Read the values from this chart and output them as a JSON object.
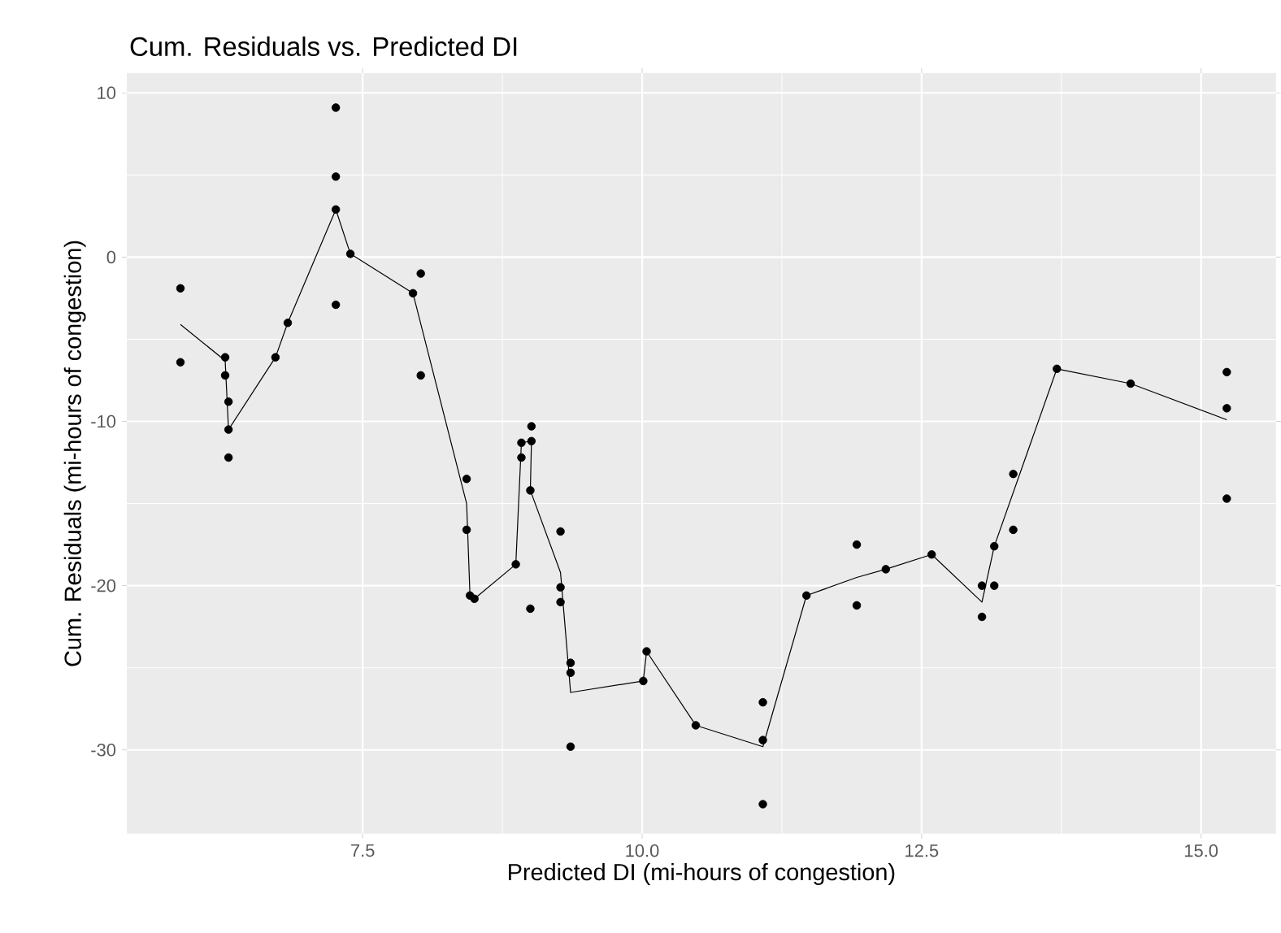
{
  "chart_data": {
    "type": "scatter",
    "title": "Cum. Residuals vs. Predicted DI",
    "xlabel": "Predicted DI (mi-hours of congestion)",
    "ylabel": "Cum. Residuals (mi-hours of congestion)",
    "xlim": [
      5.39,
      15.67
    ],
    "ylim": [
      -35.1,
      11.2
    ],
    "xticks": [
      {
        "value": 7.5,
        "label": "7.5"
      },
      {
        "value": 10,
        "label": "10.0"
      },
      {
        "value": 12.5,
        "label": "12.5"
      },
      {
        "value": 15,
        "label": "15.0"
      }
    ],
    "yticks": [
      -30,
      -20,
      -10,
      0,
      10
    ],
    "grid": true,
    "series": [
      {
        "marker": "circle",
        "color": "#000000",
        "x": [
          5.87,
          5.87,
          6.27,
          6.27,
          6.3,
          6.3,
          6.3,
          6.72,
          6.83,
          7.26,
          7.26,
          7.26,
          7.26,
          7.39,
          7.95,
          8.02,
          8.02,
          8.43,
          8.43,
          8.46,
          8.5,
          8.87,
          8.92,
          8.92,
          9.01,
          9.01,
          9.0,
          9.0,
          9.27,
          9.27,
          9.27,
          9.36,
          9.36,
          9.36,
          10.01,
          10.04,
          10.48,
          11.08,
          11.08,
          11.08,
          11.47,
          11.92,
          11.92,
          12.18,
          12.59,
          13.04,
          13.04,
          13.15,
          13.15,
          13.32,
          13.32,
          13.71,
          14.37,
          15.23,
          15.23,
          15.23
        ],
        "values": [
          -1.9,
          -6.4,
          -6.1,
          -7.2,
          -8.8,
          -10.5,
          -12.2,
          -6.1,
          -4.0,
          9.1,
          4.9,
          2.9,
          -2.9,
          0.2,
          -2.2,
          -1.0,
          -7.2,
          -13.5,
          -16.6,
          -20.6,
          -20.8,
          -18.7,
          -12.2,
          -11.3,
          -11.2,
          -10.3,
          -14.2,
          -21.4,
          -16.7,
          -20.1,
          -21.0,
          -24.7,
          -25.3,
          -29.8,
          -25.8,
          -24.0,
          -28.5,
          -27.1,
          -29.4,
          -33.3,
          -20.6,
          -17.5,
          -21.2,
          -19.0,
          -18.1,
          -20.0,
          -21.9,
          -20.0,
          -17.6,
          -16.6,
          -13.2,
          -6.8,
          -7.7,
          -7.0,
          -9.2,
          -14.7
        ]
      },
      {
        "type": "line",
        "marker": "none",
        "line_style": "solid",
        "color": "#000000",
        "x": [
          5.87,
          6.27,
          6.3,
          6.72,
          6.83,
          7.26,
          7.39,
          7.95,
          8.43,
          8.46,
          8.5,
          8.87,
          8.92,
          9.01,
          9.0,
          9.27,
          9.36,
          10.01,
          10.04,
          10.48,
          11.08,
          11.47,
          11.92,
          12.18,
          12.59,
          13.04,
          13.15,
          13.71,
          14.37,
          15.23
        ],
        "values": [
          -4.1,
          -6.3,
          -10.5,
          -6.1,
          -4.0,
          2.9,
          0.2,
          -2.2,
          -15.0,
          -20.6,
          -20.8,
          -18.7,
          -11.3,
          -11.2,
          -14.2,
          -19.2,
          -26.5,
          -25.8,
          -24.0,
          -28.5,
          -29.8,
          -20.6,
          -19.5,
          -19.0,
          -18.1,
          -21.0,
          -17.6,
          -6.8,
          -7.7,
          -9.9
        ]
      }
    ]
  }
}
